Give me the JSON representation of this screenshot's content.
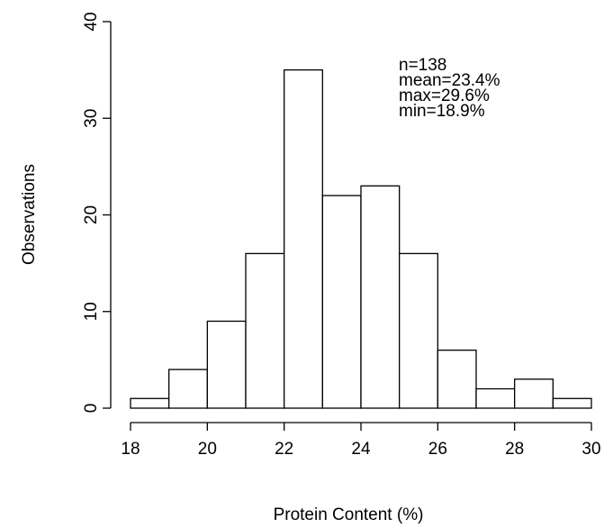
{
  "chart_data": {
    "type": "bar",
    "xlabel": "Protein Content (%)",
    "ylabel": "Observations",
    "xlim": [
      18,
      30
    ],
    "ylim": [
      0,
      40
    ],
    "x_ticks": [
      18,
      20,
      22,
      24,
      26,
      28,
      30
    ],
    "y_ticks": [
      0,
      10,
      20,
      30,
      40
    ],
    "bins": [
      {
        "start": 18,
        "end": 19,
        "count": 1
      },
      {
        "start": 19,
        "end": 20,
        "count": 4
      },
      {
        "start": 20,
        "end": 21,
        "count": 9
      },
      {
        "start": 21,
        "end": 22,
        "count": 16
      },
      {
        "start": 22,
        "end": 23,
        "count": 35
      },
      {
        "start": 23,
        "end": 24,
        "count": 22
      },
      {
        "start": 24,
        "end": 25,
        "count": 23
      },
      {
        "start": 25,
        "end": 26,
        "count": 16
      },
      {
        "start": 26,
        "end": 27,
        "count": 6
      },
      {
        "start": 27,
        "end": 28,
        "count": 2
      },
      {
        "start": 28,
        "end": 29,
        "count": 3
      },
      {
        "start": 29,
        "end": 30,
        "count": 1
      }
    ],
    "annotations": [
      "n=138",
      "mean=23.4%",
      "max=29.6%",
      "min=18.9%"
    ],
    "grid": false
  }
}
